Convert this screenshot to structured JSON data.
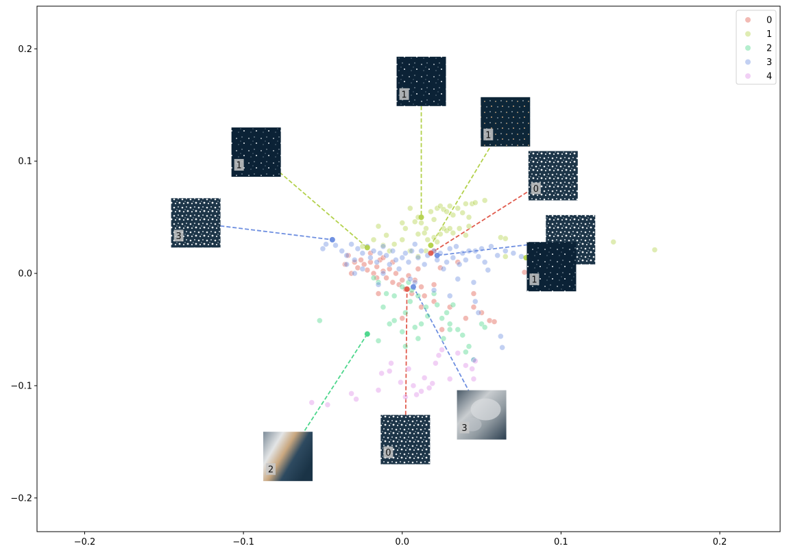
{
  "chart_data": {
    "type": "scatter",
    "title": "",
    "xlabel": "",
    "ylabel": "",
    "xlim": [
      -0.23,
      0.238
    ],
    "ylim": [
      -0.23,
      0.238
    ],
    "grid": false,
    "legend_position": "top-right",
    "x_ticks": [
      "−0.2",
      "−0.1",
      "0.0",
      "0.1",
      "0.2"
    ],
    "x_tick_values": [
      -0.2,
      -0.1,
      0.0,
      0.1,
      0.2
    ],
    "y_ticks": [
      "−0.2",
      "−0.1",
      "0.0",
      "0.1",
      "0.2"
    ],
    "y_tick_values": [
      -0.2,
      -0.1,
      0.0,
      0.1,
      0.2
    ],
    "series": [
      {
        "name": "0",
        "color": "#e05a4c",
        "points": [
          [
            -0.03,
            0.01
          ],
          [
            -0.028,
            0.005
          ],
          [
            -0.026,
            0.012
          ],
          [
            -0.024,
            0.008
          ],
          [
            -0.022,
            0.003
          ],
          [
            -0.02,
            0.01
          ],
          [
            -0.018,
            0.0
          ],
          [
            -0.016,
            0.006
          ],
          [
            -0.014,
            0.012
          ],
          [
            -0.012,
            0.002
          ],
          [
            -0.01,
            -0.004
          ],
          [
            -0.008,
            0.004
          ],
          [
            -0.006,
            -0.008
          ],
          [
            -0.004,
            0.0
          ],
          [
            -0.002,
            -0.01
          ],
          [
            0.0,
            -0.006
          ],
          [
            0.002,
            -0.014
          ],
          [
            0.004,
            -0.002
          ],
          [
            0.006,
            -0.018
          ],
          [
            0.008,
            -0.006
          ],
          [
            0.01,
            0.004
          ],
          [
            -0.034,
            0.016
          ],
          [
            -0.036,
            0.008
          ],
          [
            -0.032,
            0.0
          ],
          [
            -0.02,
            0.018
          ],
          [
            -0.016,
            -0.004
          ],
          [
            -0.012,
            0.014
          ],
          [
            -0.006,
            0.01
          ],
          [
            0.012,
            -0.012
          ],
          [
            0.014,
            -0.02
          ],
          [
            0.02,
            -0.01
          ],
          [
            0.03,
            -0.03
          ],
          [
            0.04,
            -0.04
          ],
          [
            0.045,
            -0.03
          ],
          [
            0.05,
            -0.035
          ],
          [
            0.055,
            -0.042
          ],
          [
            0.058,
            -0.043
          ],
          [
            0.025,
            -0.05
          ],
          [
            0.02,
            -0.025
          ],
          [
            0.0,
            -0.04
          ],
          [
            -0.015,
            -0.018
          ],
          [
            0.012,
            -0.03
          ],
          [
            0.045,
            -0.018
          ],
          [
            0.035,
            0.01
          ],
          [
            0.077,
            0.001
          ],
          [
            0.02,
            0.02
          ],
          [
            0.024,
            0.005
          ]
        ]
      },
      {
        "name": "1",
        "color": "#b3d14b",
        "points": [
          [
            0.005,
            0.058
          ],
          [
            0.01,
            0.05
          ],
          [
            0.012,
            0.045
          ],
          [
            0.015,
            0.04
          ],
          [
            0.018,
            0.055
          ],
          [
            0.02,
            0.048
          ],
          [
            0.022,
            0.058
          ],
          [
            0.024,
            0.06
          ],
          [
            0.026,
            0.057
          ],
          [
            0.028,
            0.055
          ],
          [
            0.03,
            0.06
          ],
          [
            0.032,
            0.052
          ],
          [
            0.035,
            0.058
          ],
          [
            0.038,
            0.054
          ],
          [
            0.04,
            0.062
          ],
          [
            0.042,
            0.05
          ],
          [
            0.044,
            0.062
          ],
          [
            0.046,
            0.063
          ],
          [
            0.052,
            0.065
          ],
          [
            0.0,
            0.045
          ],
          [
            0.002,
            0.04
          ],
          [
            0.008,
            0.046
          ],
          [
            0.01,
            0.035
          ],
          [
            0.014,
            0.036
          ],
          [
            0.016,
            0.03
          ],
          [
            0.018,
            0.025
          ],
          [
            0.02,
            0.032
          ],
          [
            0.022,
            0.028
          ],
          [
            0.024,
            0.035
          ],
          [
            0.026,
            0.04
          ],
          [
            0.028,
            0.038
          ],
          [
            0.03,
            0.04
          ],
          [
            0.032,
            0.036
          ],
          [
            0.036,
            0.04
          ],
          [
            0.04,
            0.034
          ],
          [
            0.042,
            0.042
          ],
          [
            0.0,
            0.03
          ],
          [
            -0.005,
            0.026
          ],
          [
            -0.01,
            0.034
          ],
          [
            -0.012,
            0.025
          ],
          [
            -0.018,
            0.03
          ],
          [
            -0.015,
            0.042
          ],
          [
            -0.008,
            0.02
          ],
          [
            0.005,
            0.02
          ],
          [
            0.01,
            0.015
          ],
          [
            0.015,
            0.02
          ],
          [
            0.062,
            0.032
          ],
          [
            0.065,
            0.031
          ],
          [
            0.065,
            0.015
          ],
          [
            0.133,
            0.028
          ],
          [
            0.159,
            0.021
          ],
          [
            -0.025,
            0.024
          ]
        ]
      },
      {
        "name": "2",
        "color": "#4cd68b",
        "points": [
          [
            -0.052,
            -0.042
          ],
          [
            -0.015,
            -0.06
          ],
          [
            -0.012,
            -0.03
          ],
          [
            -0.008,
            -0.045
          ],
          [
            -0.005,
            -0.042
          ],
          [
            0.0,
            -0.052
          ],
          [
            0.002,
            -0.035
          ],
          [
            0.005,
            -0.025
          ],
          [
            0.008,
            -0.048
          ],
          [
            0.01,
            -0.058
          ],
          [
            0.012,
            -0.045
          ],
          [
            0.015,
            -0.03
          ],
          [
            0.02,
            -0.018
          ],
          [
            0.022,
            -0.028
          ],
          [
            0.025,
            -0.04
          ],
          [
            0.028,
            -0.035
          ],
          [
            0.03,
            -0.045
          ],
          [
            0.03,
            -0.05
          ],
          [
            0.032,
            -0.028
          ],
          [
            0.035,
            -0.05
          ],
          [
            0.038,
            -0.055
          ],
          [
            0.042,
            -0.065
          ],
          [
            0.045,
            -0.077
          ],
          [
            0.05,
            -0.045
          ],
          [
            0.052,
            -0.048
          ],
          [
            -0.01,
            -0.018
          ],
          [
            -0.005,
            -0.02
          ],
          [
            0.0,
            -0.012
          ],
          [
            0.004,
            -0.008
          ],
          [
            0.006,
            -0.015
          ],
          [
            0.01,
            -0.02
          ],
          [
            -0.015,
            -0.008
          ],
          [
            0.016,
            -0.038
          ],
          [
            0.026,
            -0.058
          ],
          [
            -0.022,
            -0.054
          ],
          [
            -0.018,
            -0.004
          ],
          [
            0.002,
            -0.065
          ],
          [
            0.04,
            -0.07
          ]
        ]
      },
      {
        "name": "3",
        "color": "#6d8ee0",
        "points": [
          [
            -0.044,
            0.03
          ],
          [
            -0.048,
            0.026
          ],
          [
            -0.05,
            0.022
          ],
          [
            -0.042,
            0.025
          ],
          [
            -0.038,
            0.02
          ],
          [
            -0.035,
            0.016
          ],
          [
            -0.032,
            0.026
          ],
          [
            -0.03,
            0.012
          ],
          [
            -0.028,
            0.022
          ],
          [
            -0.025,
            0.018
          ],
          [
            -0.022,
            0.024
          ],
          [
            -0.02,
            0.014
          ],
          [
            -0.018,
            0.02
          ],
          [
            -0.016,
            0.01
          ],
          [
            -0.014,
            0.018
          ],
          [
            -0.012,
            0.024
          ],
          [
            -0.01,
            0.016
          ],
          [
            -0.008,
            0.008
          ],
          [
            -0.006,
            0.02
          ],
          [
            -0.004,
            0.012
          ],
          [
            -0.002,
            0.004
          ],
          [
            0.0,
            0.014
          ],
          [
            0.002,
            0.018
          ],
          [
            0.004,
            0.01
          ],
          [
            0.006,
            0.02
          ],
          [
            0.008,
            0.026
          ],
          [
            0.01,
            0.014
          ],
          [
            0.012,
            0.02
          ],
          [
            0.014,
            0.008
          ],
          [
            0.016,
            0.016
          ],
          [
            0.02,
            0.02
          ],
          [
            0.022,
            0.012
          ],
          [
            0.024,
            0.018
          ],
          [
            0.026,
            0.004
          ],
          [
            0.028,
            0.01
          ],
          [
            0.03,
            0.022
          ],
          [
            0.032,
            0.014
          ],
          [
            0.034,
            0.024
          ],
          [
            0.036,
            0.008
          ],
          [
            0.038,
            0.018
          ],
          [
            0.04,
            0.012
          ],
          [
            0.042,
            0.02
          ],
          [
            0.046,
            0.02
          ],
          [
            0.048,
            0.015
          ],
          [
            0.05,
            0.022
          ],
          [
            0.052,
            0.01
          ],
          [
            0.054,
            0.003
          ],
          [
            0.056,
            0.024
          ],
          [
            0.06,
            0.016
          ],
          [
            0.065,
            0.02
          ],
          [
            0.07,
            0.018
          ],
          [
            0.075,
            0.015
          ],
          [
            0.08,
            0.02
          ],
          [
            0.085,
            0.022
          ],
          [
            0.09,
            0.012
          ],
          [
            0.095,
            0.008
          ],
          [
            0.098,
            0.015
          ],
          [
            0.062,
            -0.056
          ],
          [
            0.063,
            -0.066
          ],
          [
            0.045,
            -0.077
          ],
          [
            0.046,
            -0.025
          ],
          [
            0.045,
            -0.008
          ],
          [
            0.03,
            -0.02
          ],
          [
            0.02,
            -0.015
          ],
          [
            0.005,
            -0.005
          ],
          [
            -0.015,
            -0.01
          ],
          [
            -0.03,
            0.0
          ],
          [
            -0.035,
            0.008
          ],
          [
            -0.025,
            0.004
          ],
          [
            -0.012,
            0.0
          ],
          [
            0.008,
            -0.008
          ],
          [
            0.035,
            -0.005
          ],
          [
            0.048,
            -0.035
          ]
        ]
      },
      {
        "name": "4",
        "color": "#dd8ee8",
        "points": [
          [
            -0.057,
            -0.115
          ],
          [
            -0.047,
            -0.117
          ],
          [
            -0.032,
            -0.107
          ],
          [
            -0.029,
            -0.112
          ],
          [
            -0.015,
            -0.104
          ],
          [
            -0.013,
            -0.089
          ],
          [
            -0.008,
            -0.087
          ],
          [
            -0.007,
            -0.08
          ],
          [
            -0.001,
            -0.097
          ],
          [
            0.002,
            -0.11
          ],
          [
            0.004,
            -0.085
          ],
          [
            0.007,
            -0.1
          ],
          [
            0.009,
            -0.108
          ],
          [
            0.012,
            -0.105
          ],
          [
            0.014,
            -0.093
          ],
          [
            0.017,
            -0.102
          ],
          [
            0.019,
            -0.098
          ],
          [
            0.021,
            -0.08
          ],
          [
            0.023,
            -0.073
          ],
          [
            0.025,
            -0.068
          ],
          [
            0.03,
            -0.094
          ],
          [
            0.035,
            -0.071
          ],
          [
            0.04,
            -0.082
          ],
          [
            0.044,
            -0.085
          ],
          [
            0.045,
            -0.094
          ],
          [
            0.046,
            -0.078
          ]
        ]
      }
    ],
    "highlights": [
      {
        "series": "0",
        "x": 0.018,
        "y": 0.018
      },
      {
        "series": "0",
        "x": 0.003,
        "y": -0.014
      },
      {
        "series": "1",
        "x": -0.022,
        "y": 0.023
      },
      {
        "series": "1",
        "x": 0.012,
        "y": 0.05
      },
      {
        "series": "1",
        "x": 0.018,
        "y": 0.025
      },
      {
        "series": "1",
        "x": 0.078,
        "y": 0.014
      },
      {
        "series": "2",
        "x": -0.022,
        "y": -0.054
      },
      {
        "series": "3",
        "x": -0.044,
        "y": 0.03
      },
      {
        "series": "3",
        "x": 0.022,
        "y": 0.016
      },
      {
        "series": "3",
        "x": 0.007,
        "y": -0.012
      }
    ],
    "thumbnails": [
      {
        "label": "1",
        "series": "1",
        "x": 0.012,
        "y": 0.171,
        "style": "dark",
        "target": [
          0.012,
          0.05
        ]
      },
      {
        "label": "1",
        "series": "1",
        "x": 0.065,
        "y": 0.135,
        "style": "dark-orange",
        "target": [
          0.018,
          0.025
        ]
      },
      {
        "label": "1",
        "series": "1",
        "x": -0.092,
        "y": 0.108,
        "style": "dark",
        "target": [
          -0.022,
          0.023
        ]
      },
      {
        "label": "0",
        "series": "0",
        "x": 0.095,
        "y": 0.087,
        "style": "white-dense",
        "target": [
          0.018,
          0.018
        ]
      },
      {
        "label": "3",
        "series": "3",
        "x": -0.13,
        "y": 0.045,
        "style": "white-dense",
        "target": [
          -0.044,
          0.03
        ]
      },
      {
        "label": "",
        "series": "3",
        "x": 0.106,
        "y": 0.03,
        "style": "white-dense",
        "target": [
          0.022,
          0.016
        ]
      },
      {
        "label": "1",
        "series": "1",
        "x": 0.094,
        "y": 0.006,
        "style": "dark",
        "target": [
          0.078,
          0.014
        ]
      },
      {
        "label": "3",
        "series": "3",
        "x": 0.05,
        "y": -0.126,
        "style": "cloudy",
        "target": [
          0.007,
          -0.012
        ]
      },
      {
        "label": "0",
        "series": "0",
        "x": 0.002,
        "y": -0.148,
        "style": "white-dense",
        "target": [
          0.003,
          -0.014
        ]
      },
      {
        "label": "2",
        "series": "2",
        "x": -0.072,
        "y": -0.163,
        "style": "cloud-band",
        "target": [
          -0.022,
          -0.054
        ]
      }
    ]
  }
}
